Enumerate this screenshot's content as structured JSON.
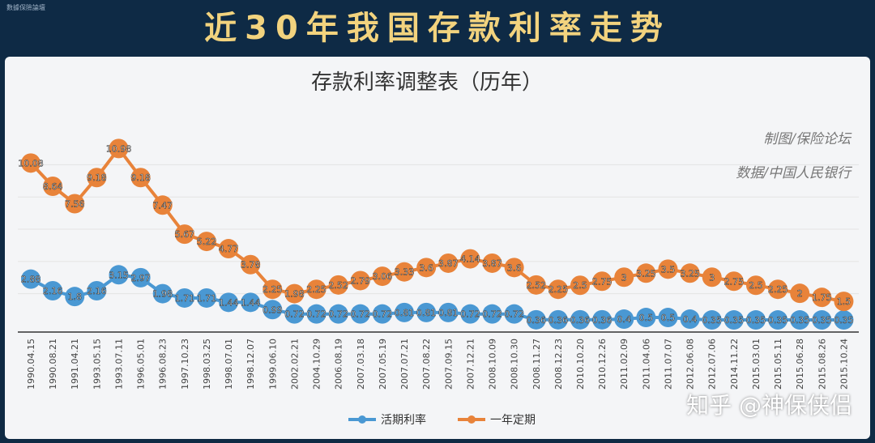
{
  "banner": {
    "title": "近30年我国存款利率走势",
    "corner_mark": "數據保險論壇"
  },
  "watermark": "知乎 @神保侠侣",
  "credits": {
    "line1": "制图/保险论坛",
    "line2": "数据/中国人民银行"
  },
  "colors": {
    "demand": "#4a98d3",
    "one_year": "#e8833a",
    "banner_text": "#f2d37e",
    "banner_bg": "#0e2a45"
  },
  "chart_data": {
    "type": "line",
    "title": "存款利率调整表（历年）",
    "categories": [
      "1990.04.15",
      "1990.08.21",
      "1991.04.21",
      "1993.05.15",
      "1993.07.11",
      "1996.05.01",
      "1996.08.23",
      "1997.10.23",
      "1998.03.25",
      "1998.07.01",
      "1998.12.07",
      "1999.06.10",
      "2002.02.21",
      "2004.10.29",
      "2006.08.19",
      "2007.03.18",
      "2007.05.19",
      "2007.07.21",
      "2007.08.22",
      "2007.09.15",
      "2007.12.21",
      "2008.10.09",
      "2008.10.30",
      "2008.11.27",
      "2008.12.23",
      "2010.10.20",
      "2010.12.26",
      "2011.02.09",
      "2011.04.06",
      "2011.07.07",
      "2012.06.08",
      "2012.07.06",
      "2014.11.22",
      "2015.03.01",
      "2015.05.11",
      "2015.06.28",
      "2015.08.26",
      "2015.10.24"
    ],
    "series": [
      {
        "name": "活期利率",
        "values": [
          2.88,
          2.16,
          1.8,
          2.16,
          3.15,
          2.97,
          1.98,
          1.71,
          1.71,
          1.44,
          1.44,
          0.99,
          0.72,
          0.72,
          0.72,
          0.72,
          0.72,
          0.81,
          0.81,
          0.81,
          0.72,
          0.72,
          0.72,
          0.36,
          0.36,
          0.36,
          0.36,
          0.4,
          0.5,
          0.5,
          0.4,
          0.35,
          0.35,
          0.35,
          0.35,
          0.35,
          0.35,
          0.35
        ]
      },
      {
        "name": "一年定期",
        "values": [
          10.08,
          8.64,
          7.56,
          9.18,
          10.98,
          9.18,
          7.47,
          5.67,
          5.22,
          4.77,
          3.78,
          2.25,
          1.98,
          2.25,
          2.52,
          2.79,
          3.06,
          3.33,
          3.6,
          3.87,
          4.14,
          3.87,
          3.6,
          2.52,
          2.25,
          2.5,
          2.75,
          3,
          3.25,
          3.5,
          3.25,
          3,
          2.75,
          2.5,
          2.25,
          2,
          1.75,
          1.5
        ]
      }
    ],
    "grid": "horizontal",
    "legend": "bottom-center"
  }
}
